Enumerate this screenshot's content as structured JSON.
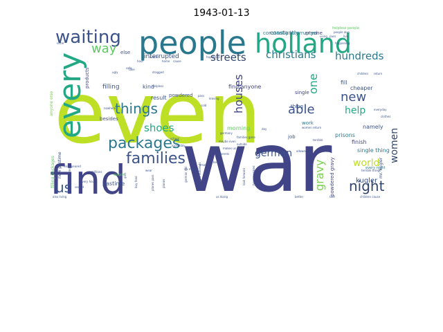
{
  "chart_data": {
    "type": "wordcloud",
    "title": "1943-01-13",
    "colormap": [
      "#440154",
      "#3b528b",
      "#21918c",
      "#5ec962",
      "#bddf26"
    ],
    "words": [
      {
        "text": "even",
        "weight": 1.0,
        "color": "#bddf26"
      },
      {
        "text": "war",
        "weight": 0.95,
        "color": "#414487"
      },
      {
        "text": "find",
        "weight": 0.62,
        "color": "#414487"
      },
      {
        "text": "people",
        "weight": 0.55,
        "color": "#2a788e"
      },
      {
        "text": "holland",
        "weight": 0.5,
        "color": "#22a884"
      },
      {
        "text": "every",
        "weight": 0.48,
        "color": "#22a884"
      },
      {
        "text": "waiting",
        "weight": 0.3,
        "color": "#3b528b"
      },
      {
        "text": "families",
        "weight": 0.26,
        "color": "#3b528b"
      },
      {
        "text": "packages",
        "weight": 0.25,
        "color": "#2a788e"
      },
      {
        "text": "things",
        "weight": 0.22,
        "color": "#2a788e"
      },
      {
        "text": "night",
        "weight": 0.22,
        "color": "#31446b"
      },
      {
        "text": "us",
        "weight": 0.22,
        "color": "#3b528b"
      },
      {
        "text": "christians",
        "weight": 0.2,
        "color": "#2a788e"
      },
      {
        "text": "hundreds",
        "weight": 0.2,
        "color": "#2a788e"
      },
      {
        "text": "way",
        "weight": 0.22,
        "color": "#5ec962"
      },
      {
        "text": "able",
        "weight": 0.22,
        "color": "#3b528b"
      },
      {
        "text": "new",
        "weight": 0.2,
        "color": "#3b528b"
      },
      {
        "text": "houses",
        "weight": 0.18,
        "color": "#414487"
      },
      {
        "text": "gravy",
        "weight": 0.18,
        "color": "#7ad151"
      },
      {
        "text": "streets",
        "weight": 0.17,
        "color": "#31446b"
      },
      {
        "text": "one",
        "weight": 0.18,
        "color": "#22a884"
      },
      {
        "text": "shoes",
        "weight": 0.16,
        "color": "#22a884"
      },
      {
        "text": "women",
        "weight": 0.16,
        "color": "#31446b"
      },
      {
        "text": "help",
        "weight": 0.15,
        "color": "#22a884"
      },
      {
        "text": "german",
        "weight": 0.14,
        "color": "#3b528b"
      },
      {
        "text": "world",
        "weight": 0.14,
        "color": "#bddf26"
      },
      {
        "text": "kugler",
        "weight": 0.1,
        "color": "#3b528b"
      },
      {
        "text": "interrupted",
        "weight": 0.09,
        "color": "#3b528b"
      },
      {
        "text": "constantly",
        "weight": 0.08,
        "color": "#2a788e"
      },
      {
        "text": "anyone",
        "weight": 0.07,
        "color": "#414487"
      },
      {
        "text": "filling",
        "weight": 0.08,
        "color": "#3b528b"
      },
      {
        "text": "kind",
        "weight": 0.07,
        "color": "#3b528b"
      },
      {
        "text": "pastime",
        "weight": 0.08,
        "color": "#3b528b"
      },
      {
        "text": "powdered gravy",
        "weight": 0.07,
        "color": "#414487"
      },
      {
        "text": "morning",
        "weight": 0.07,
        "color": "#5ec962"
      },
      {
        "text": "find anyone",
        "weight": 0.07,
        "color": "#414487"
      },
      {
        "text": "result",
        "weight": 0.07,
        "color": "#3b528b"
      },
      {
        "text": "single thing",
        "weight": 0.07,
        "color": "#2a788e"
      },
      {
        "text": "cheaper",
        "weight": 0.07,
        "color": "#3b528b"
      },
      {
        "text": "prisons",
        "weight": 0.07,
        "color": "#2a788e"
      },
      {
        "text": "namely",
        "weight": 0.07,
        "color": "#3b528b"
      },
      {
        "text": "finish",
        "weight": 0.07,
        "color": "#414487"
      },
      {
        "text": "fill",
        "weight": 0.07,
        "color": "#3b528b"
      },
      {
        "text": "thing",
        "weight": 0.07,
        "color": "#3b528b"
      },
      {
        "text": "work",
        "weight": 0.07,
        "color": "#2a788e"
      },
      {
        "text": "job",
        "weight": 0.07,
        "color": "#3b528b"
      },
      {
        "text": "single",
        "weight": 0.07,
        "color": "#414487"
      },
      {
        "text": "besides",
        "weight": 0.07,
        "color": "#3b528b"
      },
      {
        "text": "products",
        "weight": 0.06,
        "color": "#414487"
      },
      {
        "text": "powdered",
        "weight": 0.06,
        "color": "#3b528b"
      },
      {
        "text": "else",
        "weight": 0.06,
        "color": "#3b528b"
      },
      {
        "text": "every night",
        "weight": 0.05,
        "color": "#2a788e"
      },
      {
        "text": "mr. kugler",
        "weight": 0.05,
        "color": "#3b528b"
      },
      {
        "text": "filling packages",
        "weight": 0.05,
        "color": "#5ec962"
      },
      {
        "text": "anyone else",
        "weight": 0.05,
        "color": "#7ad151"
      },
      {
        "text": "new pastime",
        "weight": 0.05,
        "color": "#3b528b"
      },
      {
        "text": "constantly interrupted",
        "weight": 0.06,
        "color": "#2a788e"
      },
      {
        "text": "helpless people",
        "weight": 0.04,
        "color": "#5ec962"
      },
      {
        "text": "children",
        "weight": 0.04,
        "color": "#3b528b"
      },
      {
        "text": "return",
        "weight": 0.04,
        "color": "#3b528b"
      },
      {
        "text": "terrible",
        "weight": 0.04,
        "color": "#414487"
      },
      {
        "text": "allowed",
        "weight": 0.04,
        "color": "#3b528b"
      },
      {
        "text": "school",
        "weight": 0.04,
        "color": "#3b528b"
      },
      {
        "text": "germany",
        "weight": 0.04,
        "color": "#3b528b"
      },
      {
        "text": "conflict",
        "weight": 0.04,
        "color": "#3b528b"
      },
      {
        "text": "helpless",
        "weight": 0.04,
        "color": "#3b528b"
      },
      {
        "text": "dragged",
        "weight": 0.04,
        "color": "#3b528b"
      },
      {
        "text": "nowhere",
        "weight": 0.04,
        "color": "#3b528b"
      },
      {
        "text": "incredibly",
        "weight": 0.04,
        "color": "#3b528b"
      },
      {
        "text": "disappeared",
        "weight": 0.04,
        "color": "#3b528b"
      },
      {
        "text": "millions",
        "weight": 0.04,
        "color": "#3b528b"
      },
      {
        "text": "girls",
        "weight": 0.04,
        "color": "#3b528b"
      },
      {
        "text": "wagon",
        "weight": 0.04,
        "color": "#5ec962"
      },
      {
        "text": "sealed",
        "weight": 0.04,
        "color": "#3b528b"
      },
      {
        "text": "planes",
        "weight": 0.04,
        "color": "#3b528b"
      },
      {
        "text": "terrible things",
        "weight": 0.04,
        "color": "#3b528b"
      },
      {
        "text": "children cause",
        "weight": 0.04,
        "color": "#3b528b"
      },
      {
        "text": "look forward",
        "weight": 0.04,
        "color": "#3b528b"
      },
      {
        "text": "houses sealed",
        "weight": 0.04,
        "color": "#3b528b"
      },
      {
        "text": "buy food",
        "weight": 0.04,
        "color": "#3b528b"
      },
      {
        "text": "four hundreds",
        "weight": 0.04,
        "color": "#3b528b"
      },
      {
        "text": "also living",
        "weight": 0.04,
        "color": "#3b528b"
      },
      {
        "text": "every hour",
        "weight": 0.04,
        "color": "#3b528b"
      },
      {
        "text": "safe",
        "weight": 0.04,
        "color": "#3b528b"
      },
      {
        "text": "using",
        "weight": 0.04,
        "color": "#3b528b"
      },
      {
        "text": "pass",
        "weight": 0.04,
        "color": "#3b528b"
      },
      {
        "text": "live",
        "weight": 0.04,
        "color": "#3b528b"
      },
      {
        "text": "hour",
        "weight": 0.04,
        "color": "#3b528b"
      },
      {
        "text": "take",
        "weight": 0.04,
        "color": "#3b528b"
      },
      {
        "text": "ugly",
        "weight": 0.04,
        "color": "#3b528b"
      },
      {
        "text": "sister",
        "weight": 0.04,
        "color": "#3b528b"
      },
      {
        "text": "home",
        "weight": 0.04,
        "color": "#3b528b"
      },
      {
        "text": "cause",
        "weight": 0.04,
        "color": "#3b528b"
      },
      {
        "text": "pass",
        "weight": 0.04,
        "color": "#3b528b"
      },
      {
        "text": "families gone",
        "weight": 0.04,
        "color": "#3b528b"
      },
      {
        "text": "outside",
        "weight": 0.04,
        "color": "#3b528b"
      },
      {
        "text": "women return",
        "weight": 0.04,
        "color": "#3b528b"
      },
      {
        "text": "planes pass",
        "weight": 0.04,
        "color": "#3b528b"
      },
      {
        "text": "german soil",
        "weight": 0.04,
        "color": "#3b528b"
      },
      {
        "text": "six many",
        "weight": 0.04,
        "color": "#3b528b"
      },
      {
        "text": "wear",
        "weight": 0.04,
        "color": "#3b528b"
      },
      {
        "text": "hope",
        "weight": 0.04,
        "color": "#3b528b"
      },
      {
        "text": "keep",
        "weight": 0.04,
        "color": "#3b528b"
      },
      {
        "text": "happening",
        "weight": 0.04,
        "color": "#3b528b"
      },
      {
        "text": "maybe even",
        "weight": 0.04,
        "color": "#3b528b"
      },
      {
        "text": "makes us",
        "weight": 0.04,
        "color": "#3b528b"
      },
      {
        "text": "parents",
        "weight": 0.04,
        "color": "#3b528b"
      },
      {
        "text": "right hundreds",
        "weight": 0.04,
        "color": "#3b528b"
      },
      {
        "text": "everyday",
        "weight": 0.04,
        "color": "#3b528b"
      },
      {
        "text": "clothes",
        "weight": 0.04,
        "color": "#3b528b"
      },
      {
        "text": "bound",
        "weight": 0.04,
        "color": "#3b528b"
      },
      {
        "text": "better",
        "weight": 0.04,
        "color": "#3b528b"
      },
      {
        "text": "told",
        "weight": 0.04,
        "color": "#3b528b"
      },
      {
        "text": "small",
        "weight": 0.04,
        "color": "#3b528b"
      },
      {
        "text": "us doing",
        "weight": 0.04,
        "color": "#3b528b"
      },
      {
        "text": "leaving",
        "weight": 0.04,
        "color": "#3b528b"
      },
      {
        "text": "cold",
        "weight": 0.04,
        "color": "#3b528b"
      },
      {
        "text": "day",
        "weight": 0.04,
        "color": "#3b528b"
      },
      {
        "text": "people also",
        "weight": 0.04,
        "color": "#3b528b"
      }
    ]
  }
}
